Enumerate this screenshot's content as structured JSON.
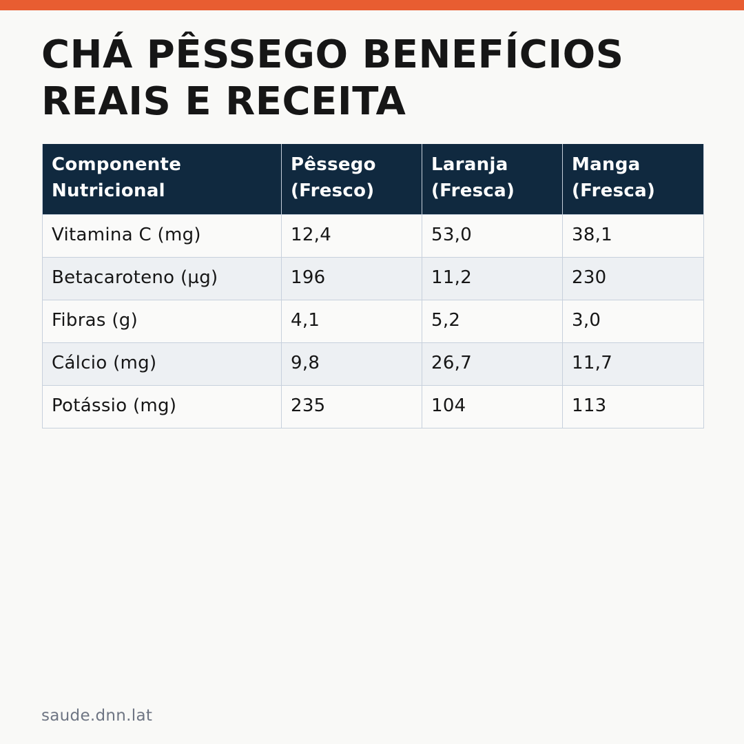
{
  "colors": {
    "accent_bar": "#e85d31",
    "header_background": "#10293f",
    "header_text": "#ffffff",
    "row_stripe": "#edf0f3",
    "page_background": "#f9f9f7",
    "border": "#c7d0dc",
    "footer_text": "#6e7583"
  },
  "title": "CHÁ PÊSSEGO BENEFÍCIOS REAIS E RECEITA",
  "table": {
    "headers": [
      "Componente\nNutricional",
      "Pêssego\n(Fresco)",
      "Laranja\n(Fresca)",
      "Manga\n(Fresca)"
    ],
    "rows": [
      [
        "Vitamina C (mg)",
        "12,4",
        "53,0",
        "38,1"
      ],
      [
        "Betacaroteno (µg)",
        "196",
        "11,2",
        "230"
      ],
      [
        "Fibras (g)",
        "4,1",
        "5,2",
        "3,0"
      ],
      [
        "Cálcio (mg)",
        "9,8",
        "26,7",
        "11,7"
      ],
      [
        "Potássio (mg)",
        "235",
        "104",
        "113"
      ]
    ]
  },
  "footer": {
    "url": "saude.dnn.lat"
  }
}
